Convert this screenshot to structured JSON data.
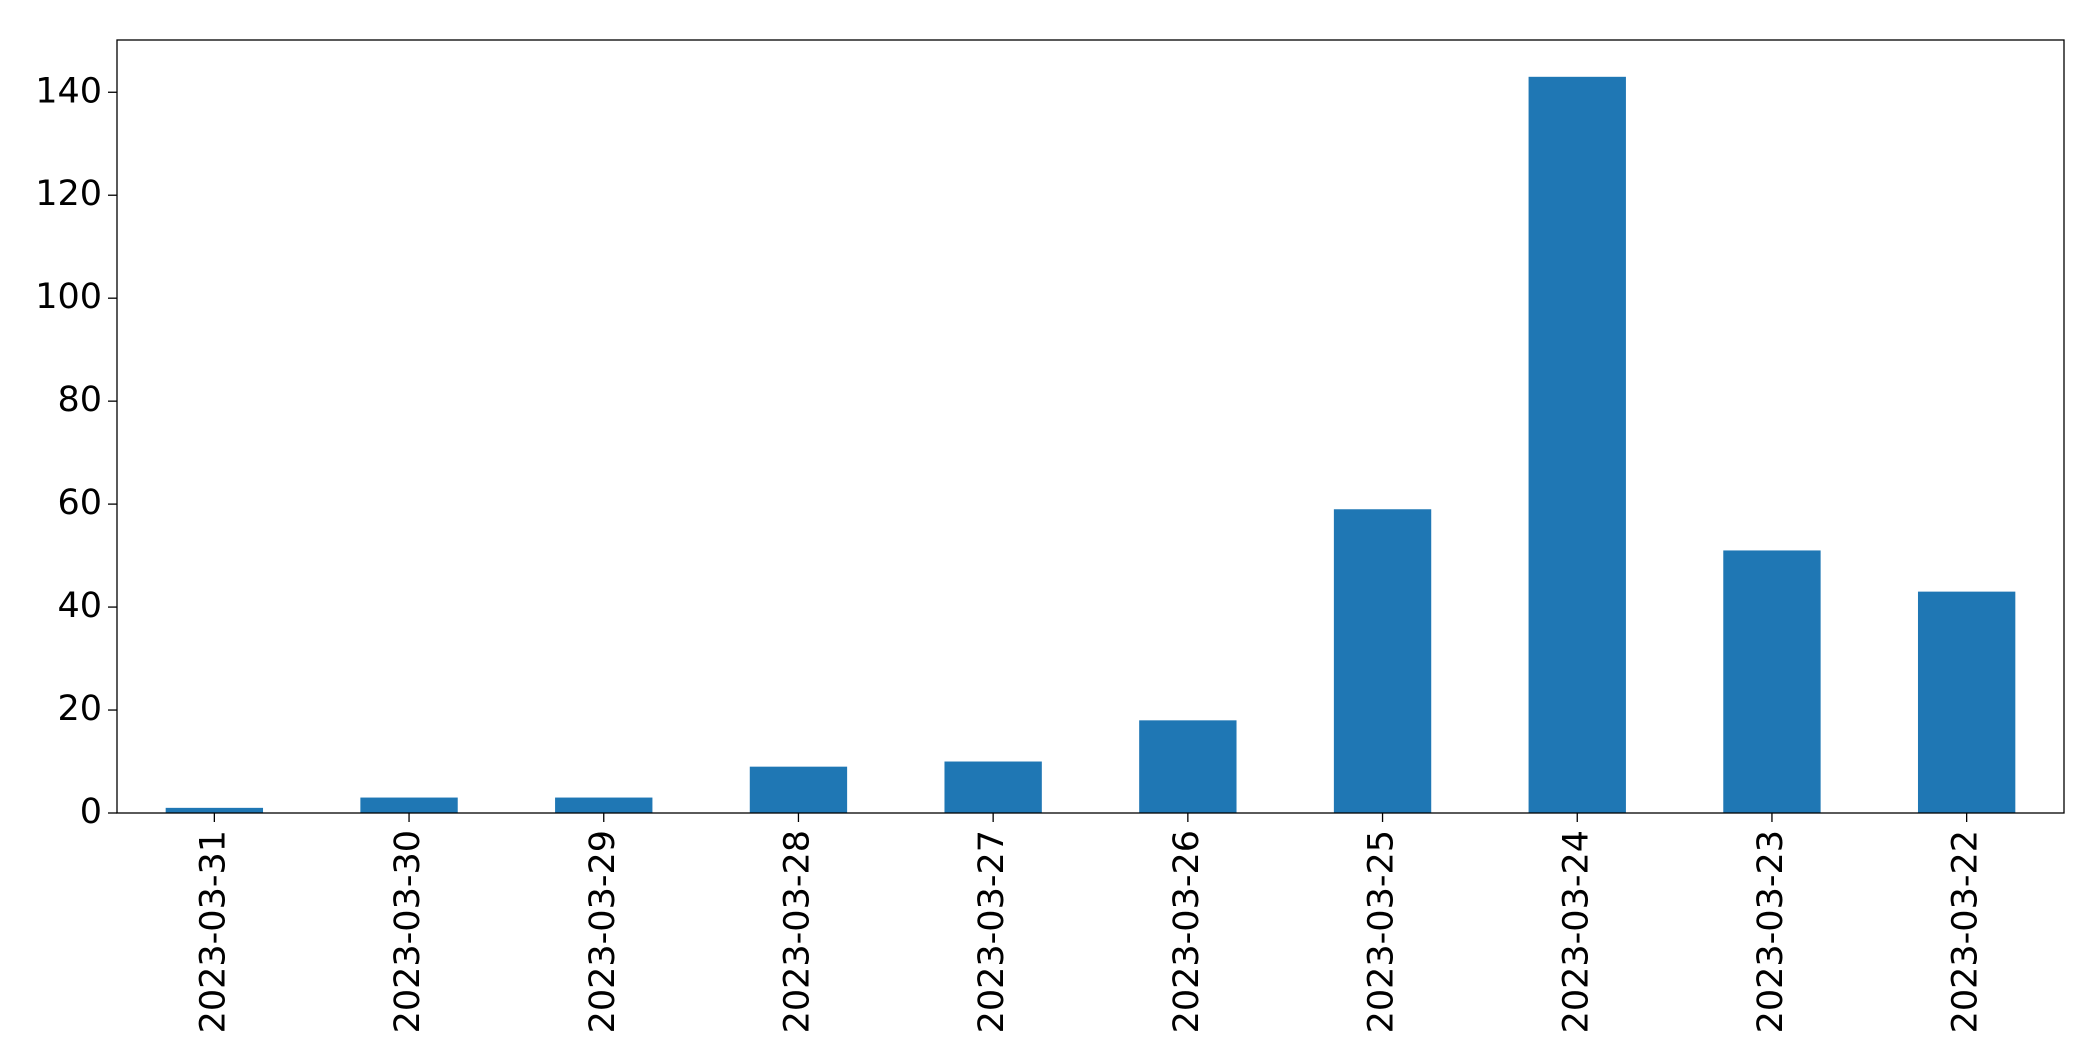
{
  "chart_data": {
    "type": "bar",
    "categories": [
      "2023-03-31",
      "2023-03-30",
      "2023-03-29",
      "2023-03-28",
      "2023-03-27",
      "2023-03-26",
      "2023-03-25",
      "2023-03-24",
      "2023-03-23",
      "2023-03-22"
    ],
    "values": [
      1,
      3,
      3,
      9,
      10,
      18,
      59,
      143,
      51,
      43
    ],
    "color": "#1f77b4",
    "ylim": [
      0,
      150.15
    ],
    "yticks": [
      0,
      20,
      40,
      60,
      80,
      100,
      120,
      140
    ],
    "grid": false
  }
}
